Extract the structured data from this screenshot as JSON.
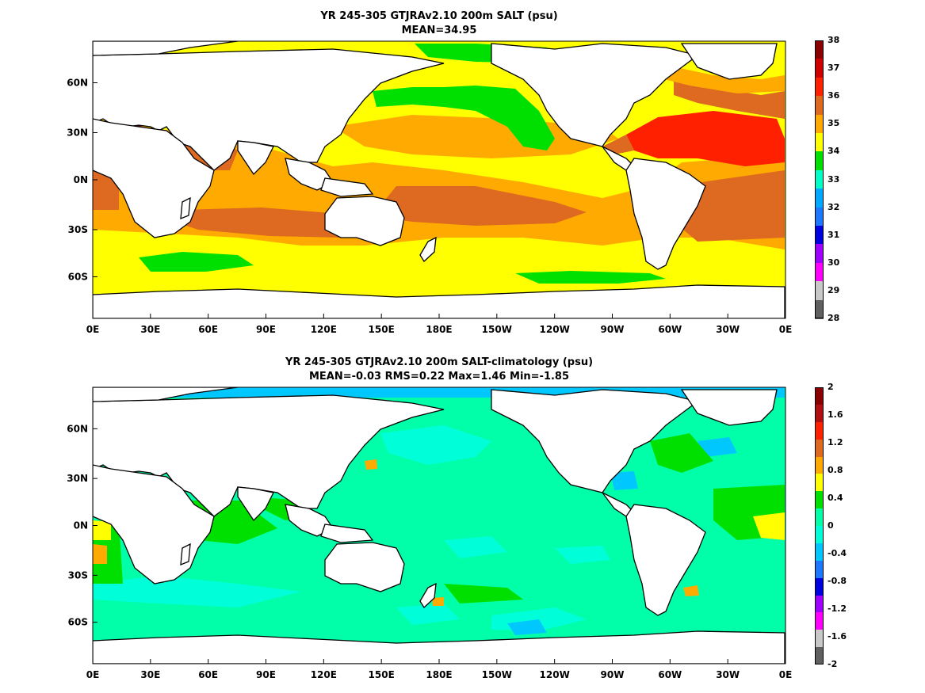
{
  "panels": [
    {
      "id": "top",
      "title_line1": "YR 245-305 GTJRAv2.10 200m SALT (psu)",
      "title_line2": "MEAN=34.95",
      "colorbar": {
        "ticks": [
          "38",
          "37",
          "36",
          "35",
          "34",
          "33",
          "32",
          "31",
          "30",
          "29",
          "28"
        ],
        "colors": [
          "#8b0000",
          "#d00000",
          "#ff2000",
          "#dd6a20",
          "#ffaa00",
          "#ffff00",
          "#00e000",
          "#00ffc8",
          "#00a8ff",
          "#1e78ff",
          "#0000e0",
          "#a000ff",
          "#ff00ff",
          "#c8c8c8",
          "#606060"
        ]
      }
    },
    {
      "id": "bottom",
      "title_line1": "YR 245-305 GTJRAv2.10 200m SALT-climatology (psu)",
      "title_line2": "MEAN=-0.03   RMS=0.22   Max=1.46   Min=-1.85",
      "colorbar": {
        "ticks": [
          "2",
          "1.6",
          "1.2",
          "0.8",
          "0.4",
          "0",
          "-0.4",
          "-0.8",
          "-1.2",
          "-1.6",
          "-2"
        ],
        "colors": [
          "#8b0000",
          "#b01010",
          "#ff2000",
          "#dd6a20",
          "#ffaa00",
          "#ffff00",
          "#00e000",
          "#00ffa8",
          "#00ffd8",
          "#00c8ff",
          "#1e78ff",
          "#0000e0",
          "#a000ff",
          "#ff00ff",
          "#c8c8c8",
          "#606060"
        ]
      }
    }
  ],
  "x_ticks": [
    "0E",
    "30E",
    "60E",
    "90E",
    "120E",
    "150E",
    "180E",
    "150W",
    "120W",
    "90W",
    "60W",
    "30W",
    "0E"
  ],
  "y_ticks": [
    "60N",
    "30N",
    "0N",
    "30S",
    "60S"
  ]
}
